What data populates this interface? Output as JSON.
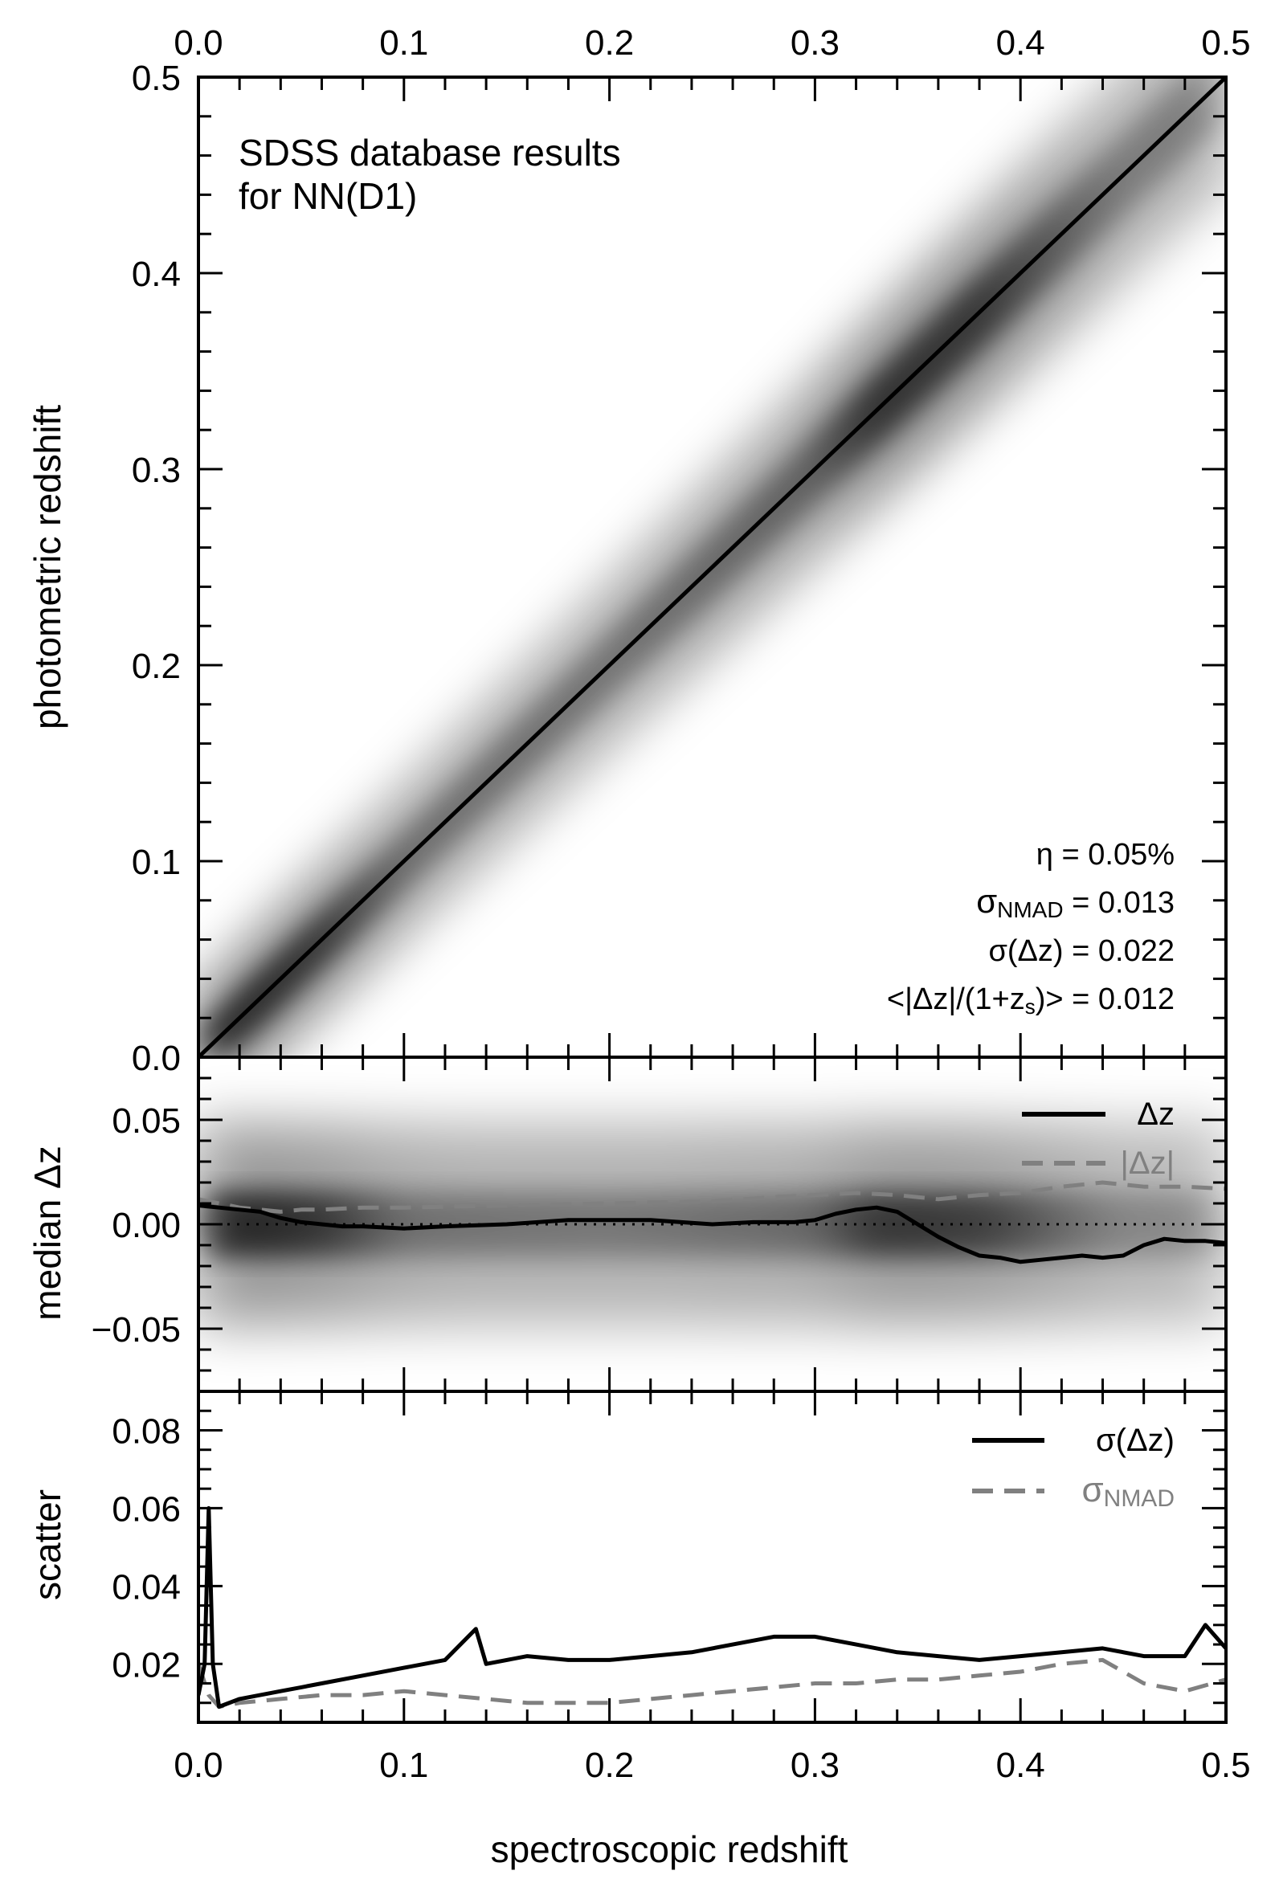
{
  "chart_data": [
    {
      "type": "heatmap",
      "panel": "main",
      "annotation_lines": [
        "SDSS database results",
        "for NN(D1)"
      ],
      "xlabel": "",
      "ylabel": "photometric redshift",
      "xlim": [
        0.0,
        0.5
      ],
      "ylim": [
        0.0,
        0.5
      ],
      "x_ticks": [
        "0.0",
        "0.1",
        "0.2",
        "0.3",
        "0.4",
        "0.5"
      ],
      "y_ticks": [
        "0.0",
        "0.1",
        "0.2",
        "0.3",
        "0.4",
        "0.5"
      ],
      "stats": [
        {
          "label": "η",
          "sub": "",
          "value": "= 0.05%"
        },
        {
          "label": "σ",
          "sub": "NMAD",
          "value": "= 0.013"
        },
        {
          "label": "σ(Δz)",
          "sub": "",
          "value": "= 0.022"
        },
        {
          "label": "<|Δz|/(1+z",
          "sub": "s",
          "value": ")> = 0.012"
        }
      ],
      "reference_line": {
        "x": [
          0.0,
          0.5
        ],
        "y": [
          0.0,
          0.5
        ]
      },
      "density_ridge": {
        "x": [
          0.03,
          0.06,
          0.1,
          0.2,
          0.3,
          0.33,
          0.38,
          0.45
        ],
        "relative_density": [
          0.95,
          0.85,
          0.5,
          0.45,
          0.55,
          0.85,
          0.8,
          0.35
        ]
      }
    },
    {
      "type": "line",
      "panel": "median",
      "ylabel": "median Δz",
      "xlim": [
        0.0,
        0.5
      ],
      "ylim": [
        -0.08,
        0.08
      ],
      "y_ticks": [
        "0.05",
        "0.00",
        "−0.05"
      ],
      "zero_line": "dotted",
      "series": [
        {
          "name": "Δz",
          "color": "#000000",
          "style": "solid",
          "x": [
            0.0,
            0.01,
            0.02,
            0.03,
            0.04,
            0.05,
            0.06,
            0.07,
            0.08,
            0.1,
            0.12,
            0.15,
            0.18,
            0.2,
            0.22,
            0.25,
            0.27,
            0.29,
            0.3,
            0.31,
            0.32,
            0.33,
            0.34,
            0.35,
            0.36,
            0.37,
            0.38,
            0.39,
            0.4,
            0.41,
            0.42,
            0.43,
            0.44,
            0.45,
            0.46,
            0.47,
            0.48,
            0.49,
            0.5
          ],
          "y": [
            0.009,
            0.008,
            0.007,
            0.006,
            0.003,
            0.001,
            0.0,
            -0.001,
            -0.001,
            -0.002,
            -0.001,
            0.0,
            0.002,
            0.002,
            0.002,
            0.0,
            0.001,
            0.001,
            0.002,
            0.005,
            0.007,
            0.008,
            0.006,
            0.0,
            -0.006,
            -0.011,
            -0.015,
            -0.016,
            -0.018,
            -0.017,
            -0.016,
            -0.015,
            -0.016,
            -0.015,
            -0.01,
            -0.007,
            -0.008,
            -0.008,
            -0.009
          ]
        },
        {
          "name": "|Δz|",
          "color": "#808080",
          "style": "dashed",
          "x": [
            0.0,
            0.01,
            0.02,
            0.03,
            0.04,
            0.05,
            0.06,
            0.08,
            0.1,
            0.15,
            0.2,
            0.25,
            0.28,
            0.3,
            0.32,
            0.34,
            0.36,
            0.38,
            0.4,
            0.42,
            0.44,
            0.46,
            0.48,
            0.5
          ],
          "y": [
            0.012,
            0.01,
            0.008,
            0.007,
            0.006,
            0.007,
            0.007,
            0.008,
            0.008,
            0.009,
            0.01,
            0.011,
            0.013,
            0.014,
            0.015,
            0.014,
            0.012,
            0.014,
            0.015,
            0.018,
            0.02,
            0.018,
            0.018,
            0.017
          ]
        }
      ],
      "density_ridge": {
        "x": [
          0.03,
          0.06,
          0.1,
          0.2,
          0.3,
          0.33,
          0.38,
          0.45
        ],
        "relative_density": [
          0.95,
          0.85,
          0.5,
          0.45,
          0.55,
          0.85,
          0.8,
          0.35
        ]
      }
    },
    {
      "type": "line",
      "panel": "scatter",
      "ylabel": "scatter",
      "xlabel": "spectroscopic redshift",
      "xlim": [
        0.0,
        0.5
      ],
      "ylim": [
        0.005,
        0.09
      ],
      "x_ticks": [
        "0.0",
        "0.1",
        "0.2",
        "0.3",
        "0.4",
        "0.5"
      ],
      "y_ticks": [
        "0.08",
        "0.06",
        "0.04",
        "0.02"
      ],
      "series": [
        {
          "name": "σ(Δz)",
          "color": "#000000",
          "style": "solid",
          "x": [
            0.0,
            0.003,
            0.005,
            0.007,
            0.01,
            0.02,
            0.03,
            0.04,
            0.05,
            0.06,
            0.08,
            0.1,
            0.12,
            0.135,
            0.14,
            0.16,
            0.18,
            0.2,
            0.22,
            0.24,
            0.26,
            0.28,
            0.3,
            0.32,
            0.34,
            0.36,
            0.38,
            0.4,
            0.42,
            0.44,
            0.46,
            0.48,
            0.49,
            0.5
          ],
          "y": [
            0.012,
            0.02,
            0.06,
            0.02,
            0.009,
            0.011,
            0.012,
            0.013,
            0.014,
            0.015,
            0.017,
            0.019,
            0.021,
            0.029,
            0.02,
            0.022,
            0.021,
            0.021,
            0.022,
            0.023,
            0.025,
            0.027,
            0.027,
            0.025,
            0.023,
            0.022,
            0.021,
            0.022,
            0.023,
            0.024,
            0.022,
            0.022,
            0.03,
            0.024
          ]
        },
        {
          "name": "σ_NMAD",
          "color": "#808080",
          "style": "dashed",
          "x": [
            0.0,
            0.005,
            0.01,
            0.02,
            0.04,
            0.06,
            0.08,
            0.1,
            0.12,
            0.14,
            0.16,
            0.18,
            0.2,
            0.22,
            0.24,
            0.26,
            0.28,
            0.3,
            0.32,
            0.34,
            0.36,
            0.38,
            0.4,
            0.42,
            0.44,
            0.46,
            0.48,
            0.5
          ],
          "y": [
            0.02,
            0.012,
            0.009,
            0.01,
            0.011,
            0.012,
            0.012,
            0.013,
            0.012,
            0.011,
            0.01,
            0.01,
            0.01,
            0.011,
            0.012,
            0.013,
            0.014,
            0.015,
            0.015,
            0.016,
            0.016,
            0.017,
            0.018,
            0.02,
            0.021,
            0.015,
            0.013,
            0.016
          ]
        }
      ],
      "legend_labels": [
        {
          "text": "σ(Δz)",
          "sub": ""
        },
        {
          "text": "σ",
          "sub": "NMAD"
        }
      ]
    }
  ]
}
